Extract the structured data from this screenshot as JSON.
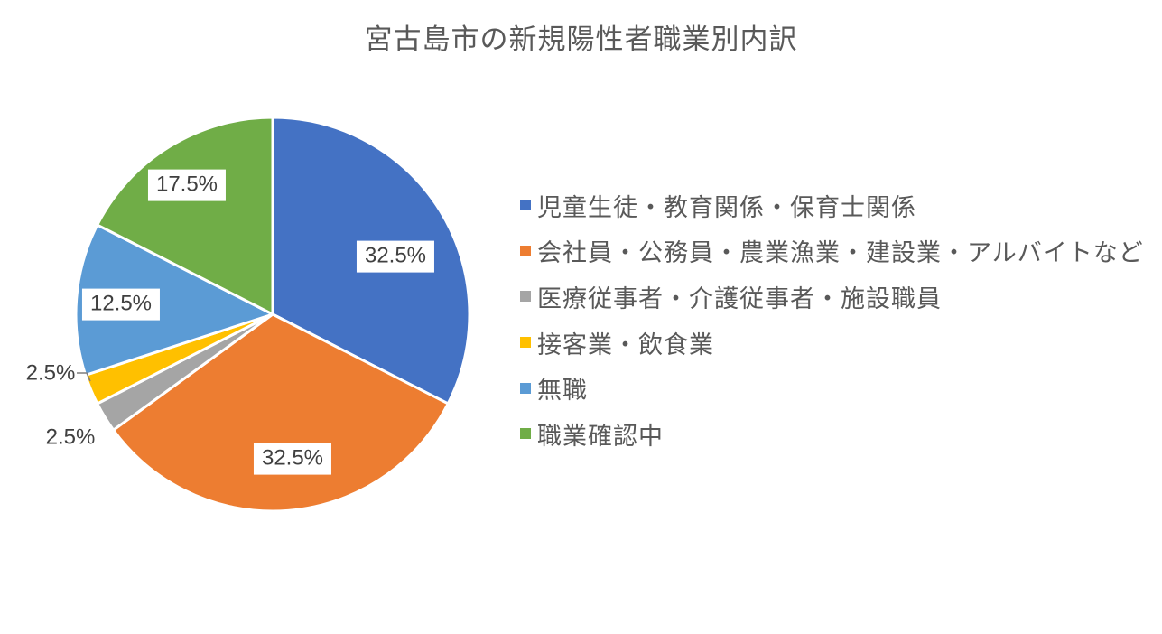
{
  "chart_data": {
    "type": "pie",
    "title": "宮古島市の新規陽性者職業別内訳",
    "categories": [
      "児童生徒・教育関係・保育士関係",
      "会社員・公務員・農業漁業・建設業・アルバイトなど",
      "医療従事者・介護従事者・施設職員",
      "接客業・飲食業",
      "無職",
      "職業確認中"
    ],
    "values": [
      32.5,
      32.5,
      2.5,
      2.5,
      12.5,
      17.5
    ],
    "labels": [
      "32.5%",
      "32.5%",
      "2.5%",
      "2.5%",
      "12.5%",
      "17.5%"
    ],
    "colors": [
      "#4472C4",
      "#ED7D31",
      "#A5A5A5",
      "#FFC000",
      "#5B9BD5",
      "#70AD47"
    ],
    "start_angle_deg": 0,
    "direction": "clockwise",
    "legend_position": "right",
    "background_color": "#FFFFFF",
    "title_color": "#595959",
    "legend_text_color": "#595959",
    "label_text_color": "#404040",
    "slice_border_color": "#FFFFFF",
    "leader_line_color": "#7F7F7F"
  }
}
